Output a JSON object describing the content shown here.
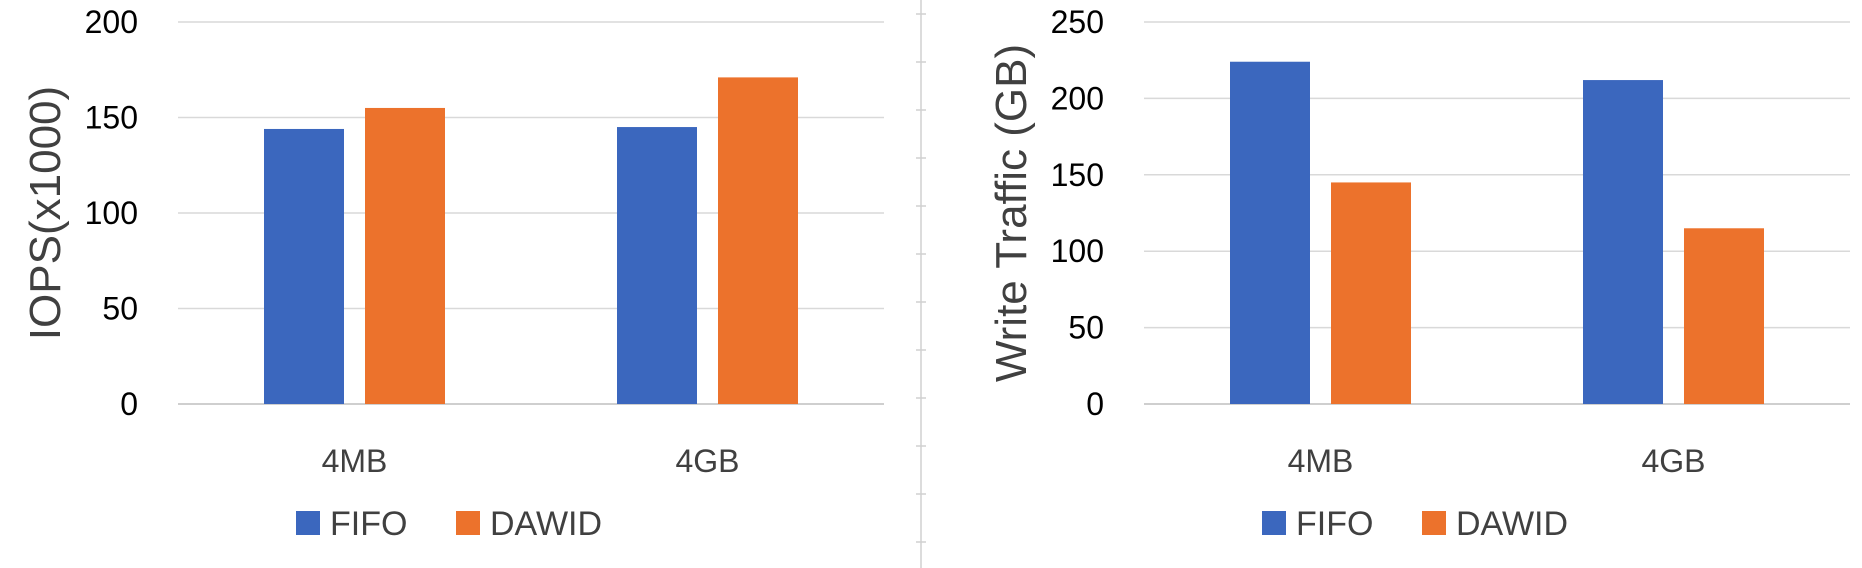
{
  "colors": {
    "fifo": "#3b67be",
    "dawid": "#ec722c"
  },
  "chart_data": [
    {
      "type": "bar",
      "ylabel": "IOPS(x1000)",
      "xlabel": "",
      "categories": [
        "4MB",
        "4GB"
      ],
      "ylim": [
        0,
        200
      ],
      "yticks": [
        0,
        50,
        100,
        150,
        200
      ],
      "grid": true,
      "legend_position": "bottom",
      "series": [
        {
          "name": "FIFO",
          "color": "#3b67be",
          "values": [
            144,
            145
          ]
        },
        {
          "name": "DAWID",
          "color": "#ec722c",
          "values": [
            155,
            171
          ]
        }
      ]
    },
    {
      "type": "bar",
      "ylabel": "Write Traffic (GB)",
      "xlabel": "",
      "categories": [
        "4MB",
        "4GB"
      ],
      "ylim": [
        0,
        250
      ],
      "yticks": [
        0,
        50,
        100,
        150,
        200,
        250
      ],
      "grid": true,
      "legend_position": "bottom",
      "series": [
        {
          "name": "FIFO",
          "color": "#3b67be",
          "values": [
            224,
            212
          ]
        },
        {
          "name": "DAWID",
          "color": "#ec722c",
          "values": [
            145,
            115
          ]
        }
      ]
    }
  ]
}
